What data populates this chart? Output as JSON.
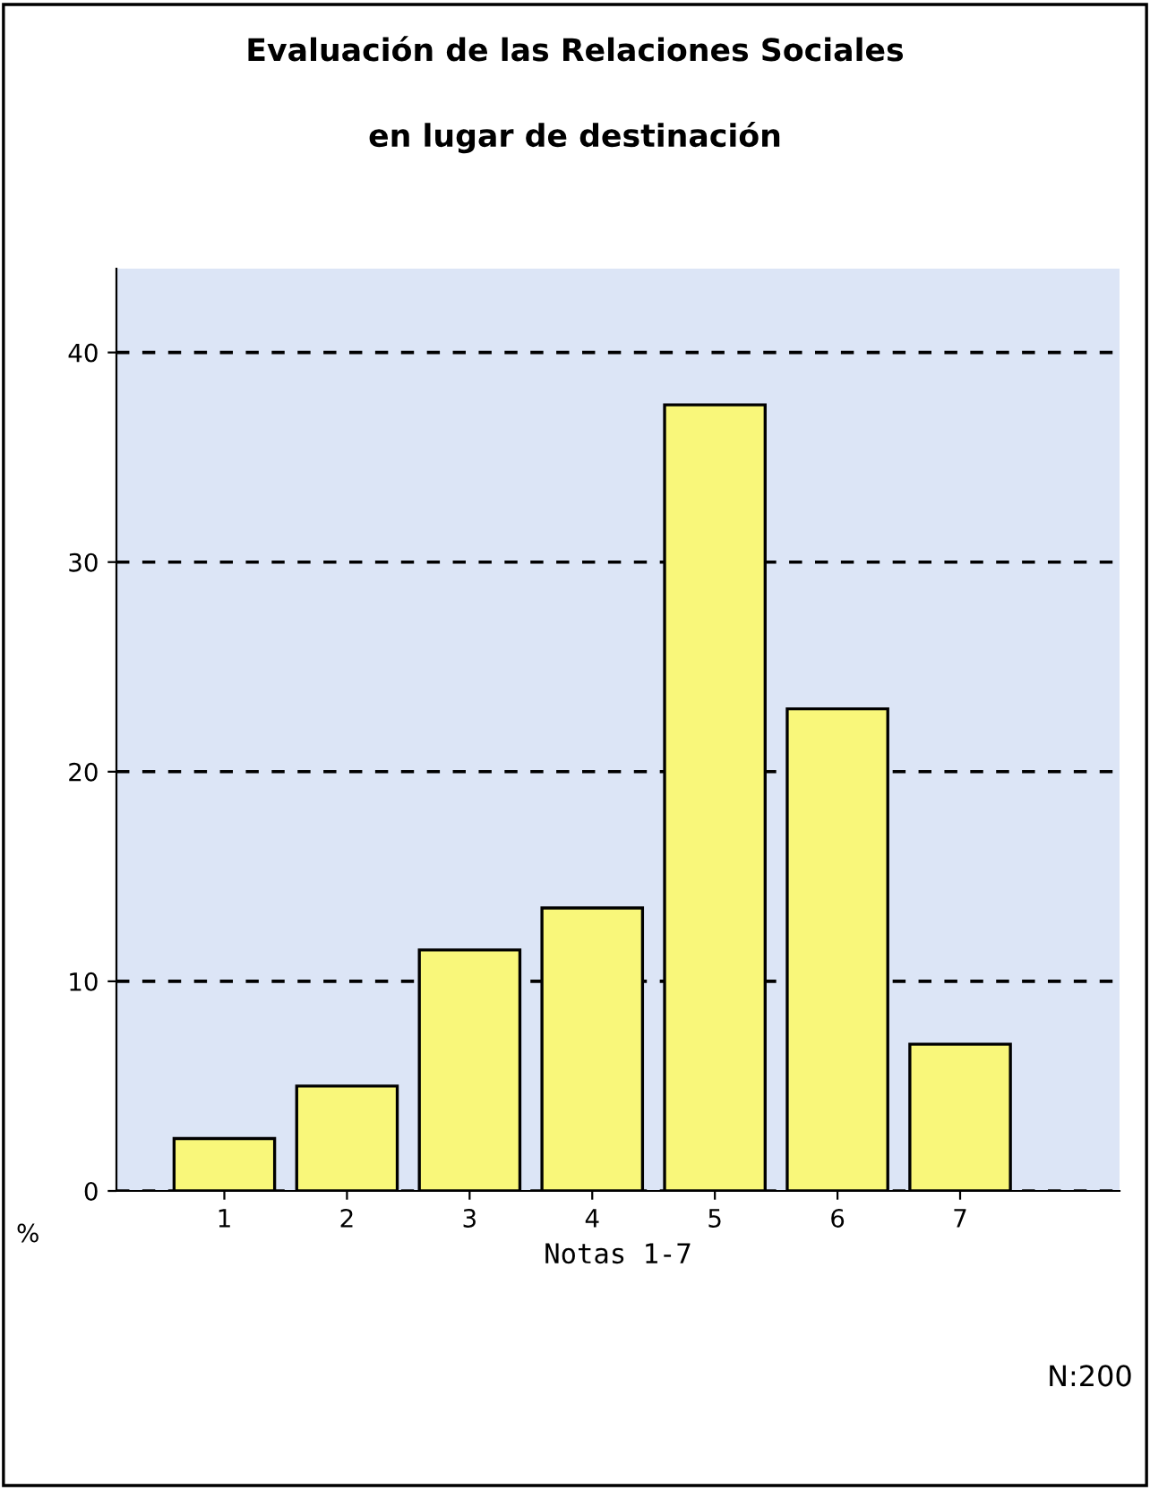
{
  "chart_data": {
    "type": "bar",
    "title": "Evaluación de las Relaciones Sociales\n\nen lugar de destinación",
    "xlabel": "Notas 1-7",
    "ylabel": "%",
    "categories": [
      "1",
      "2",
      "3",
      "4",
      "5",
      "6",
      "7"
    ],
    "values": [
      2.5,
      5,
      11.5,
      13.5,
      37.5,
      23,
      7
    ],
    "color": "#f9f77a",
    "ylim": [
      0,
      44
    ],
    "yticks": [
      0,
      10,
      20,
      30,
      40
    ],
    "grid": "y",
    "line_style": "dashed",
    "annotations": [
      "N:200"
    ]
  }
}
